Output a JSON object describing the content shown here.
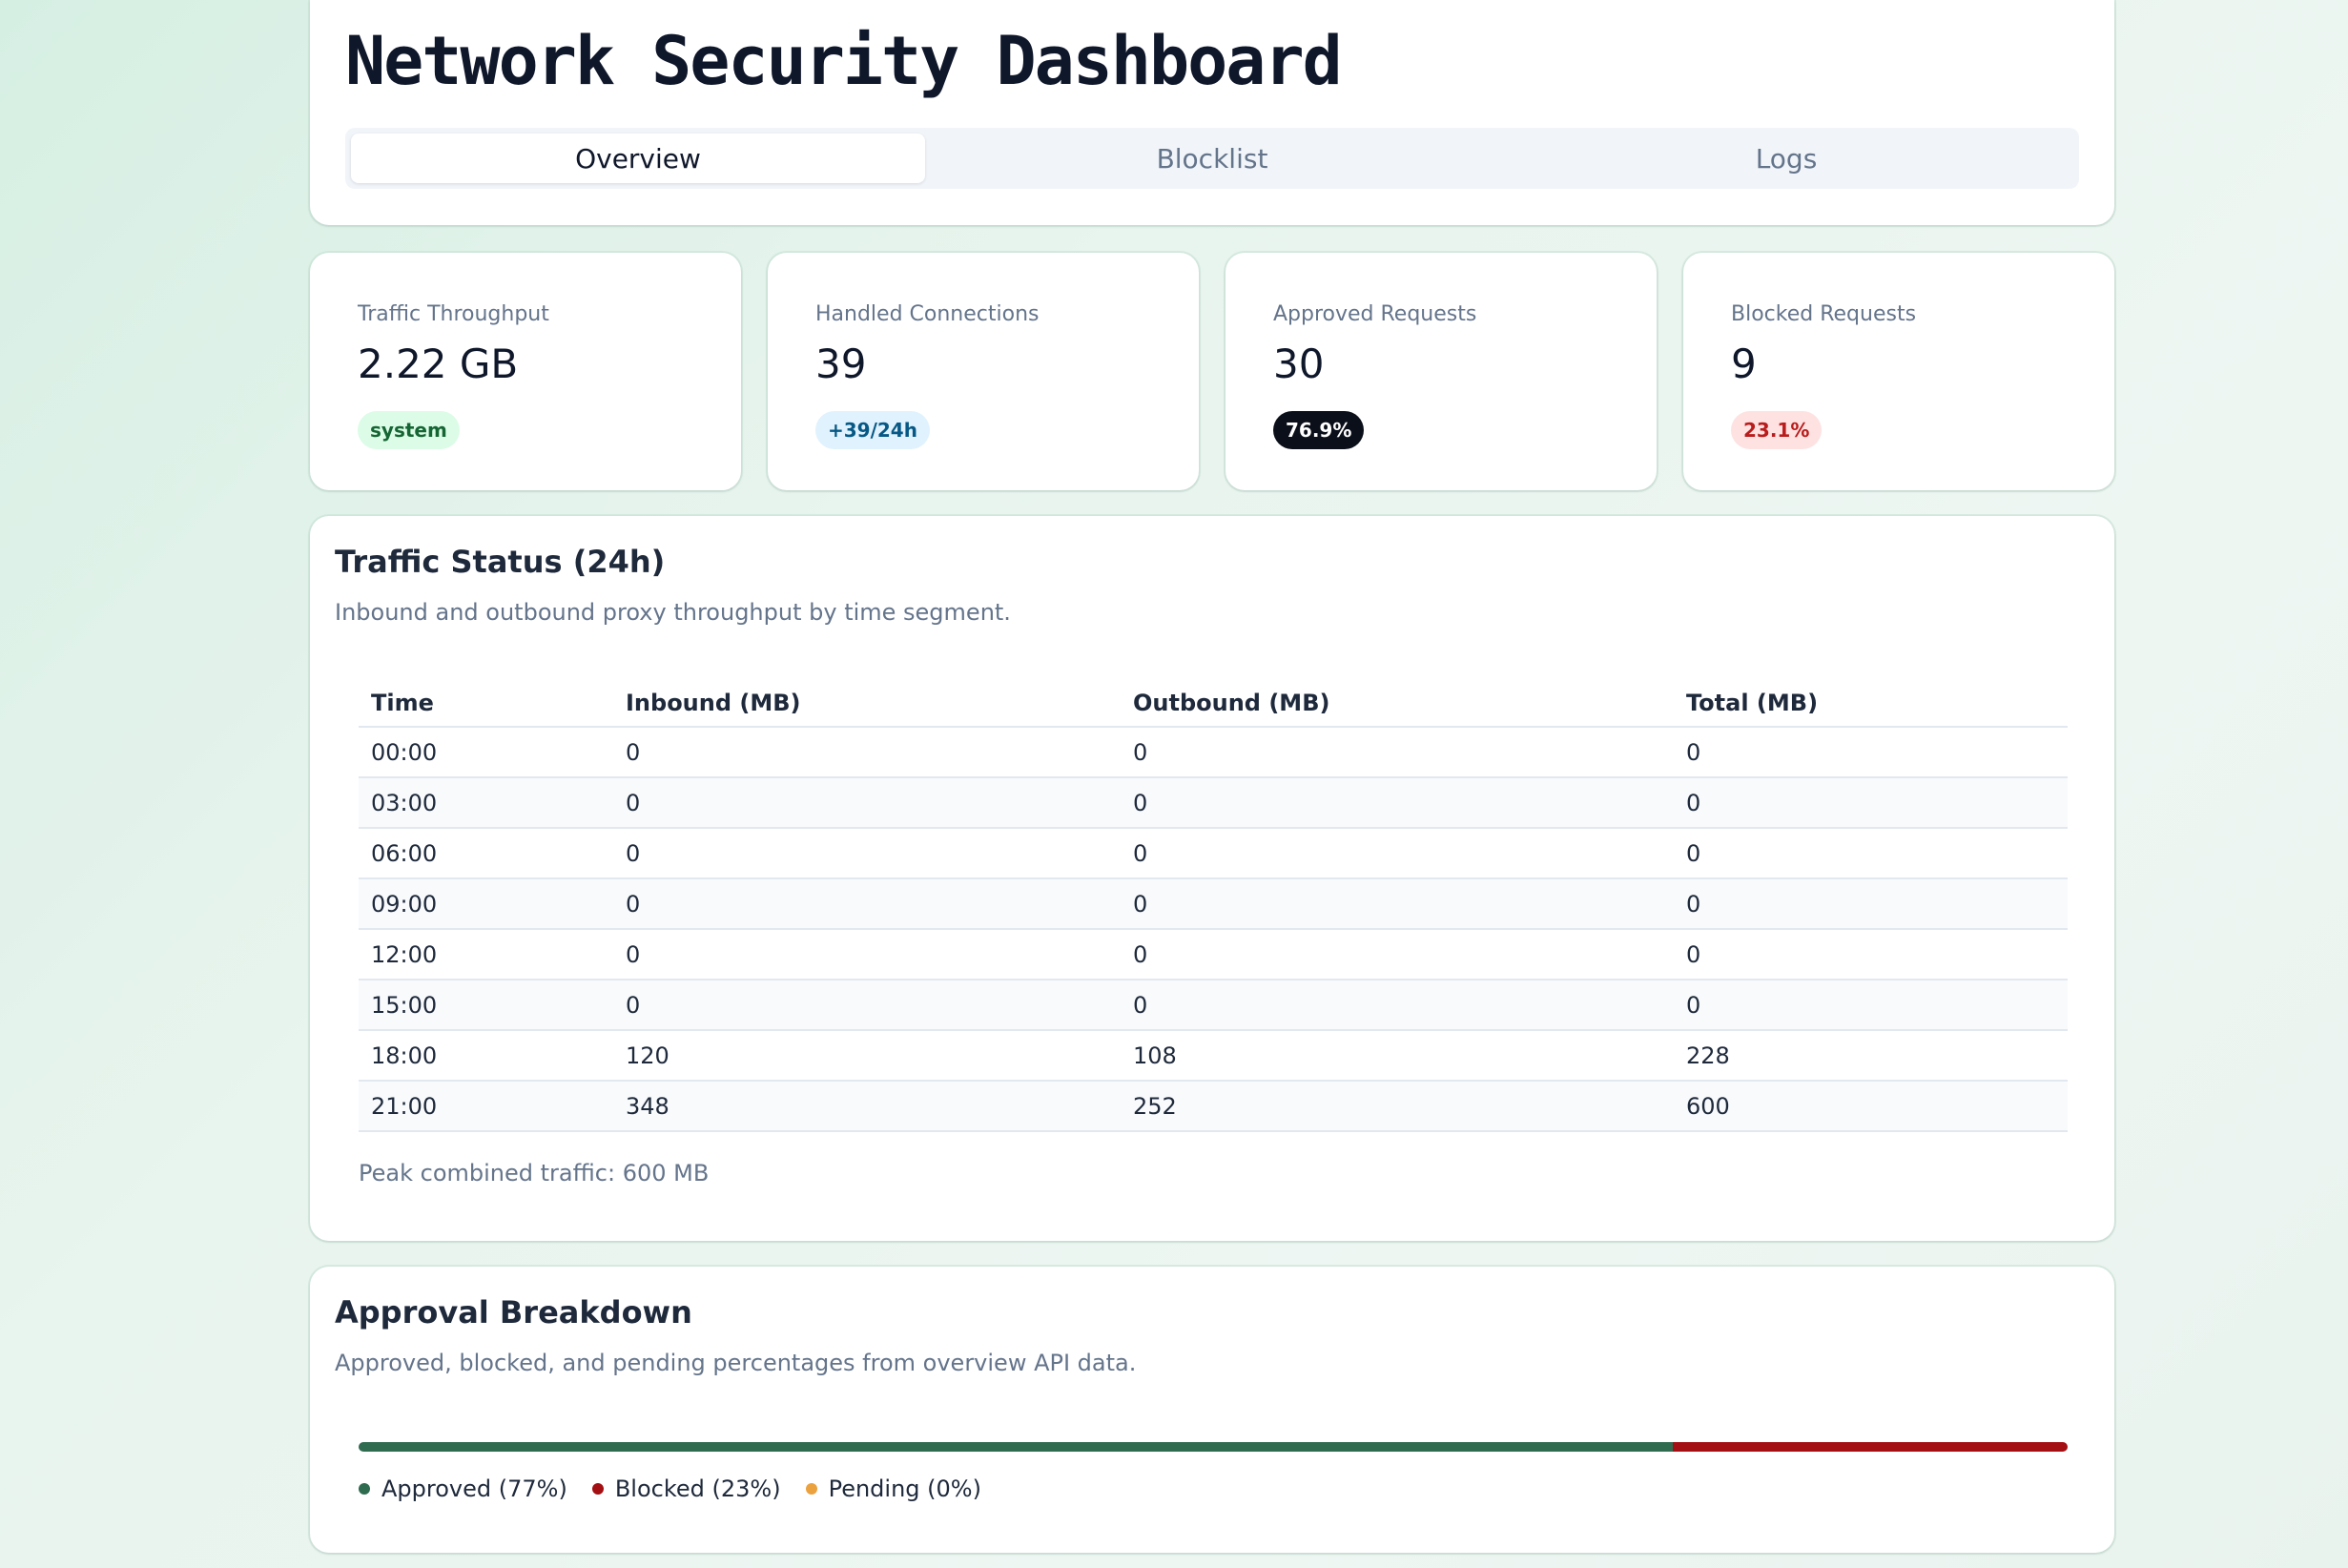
{
  "header": {
    "title": "Network Security Dashboard",
    "tabs": [
      {
        "label": "Overview",
        "active": true
      },
      {
        "label": "Blocklist",
        "active": false
      },
      {
        "label": "Logs",
        "active": false
      }
    ]
  },
  "stats": [
    {
      "label": "Traffic Throughput",
      "value": "2.22 GB",
      "badge": "system",
      "badge_style": "green"
    },
    {
      "label": "Handled Connections",
      "value": "39",
      "badge": "+39/24h",
      "badge_style": "blue"
    },
    {
      "label": "Approved Requests",
      "value": "30",
      "badge": "76.9%",
      "badge_style": "dark"
    },
    {
      "label": "Blocked Requests",
      "value": "9",
      "badge": "23.1%",
      "badge_style": "red"
    }
  ],
  "traffic": {
    "title": "Traffic Status (24h)",
    "subtitle": "Inbound and outbound proxy throughput by time segment.",
    "columns": [
      "Time",
      "Inbound (MB)",
      "Outbound (MB)",
      "Total (MB)"
    ],
    "rows": [
      [
        "00:00",
        "0",
        "0",
        "0"
      ],
      [
        "03:00",
        "0",
        "0",
        "0"
      ],
      [
        "06:00",
        "0",
        "0",
        "0"
      ],
      [
        "09:00",
        "0",
        "0",
        "0"
      ],
      [
        "12:00",
        "0",
        "0",
        "0"
      ],
      [
        "15:00",
        "0",
        "0",
        "0"
      ],
      [
        "18:00",
        "120",
        "108",
        "228"
      ],
      [
        "21:00",
        "348",
        "252",
        "600"
      ]
    ],
    "peak_text": "Peak combined traffic: 600 MB"
  },
  "approval": {
    "title": "Approval Breakdown",
    "subtitle": "Approved, blocked, and pending percentages from overview API data.",
    "segments": [
      {
        "label": "Approved (77%)",
        "percent": 76.9,
        "color": "#2f6b4f"
      },
      {
        "label": "Blocked (23%)",
        "percent": 23.1,
        "color": "#a30f12"
      },
      {
        "label": "Pending (0%)",
        "percent": 0,
        "color": "#eba23e"
      }
    ]
  }
}
